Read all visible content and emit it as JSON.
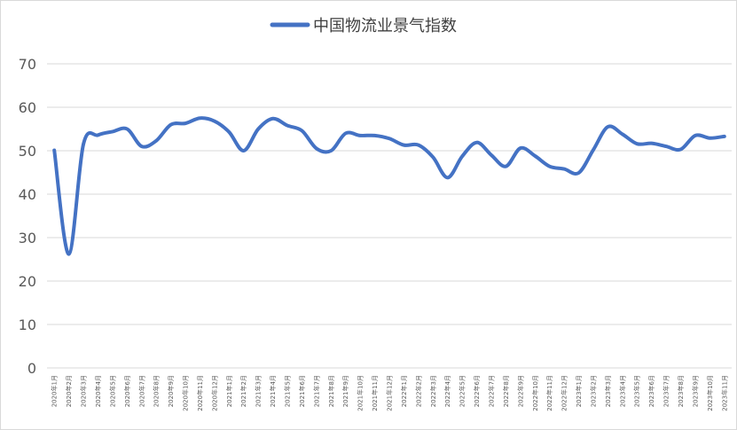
{
  "chart_data": {
    "type": "line",
    "series": [
      {
        "name": "中国物流业景气指数",
        "color": "#4472C4",
        "values": [
          50.1,
          26.2,
          51.5,
          53.6,
          54.4,
          55.0,
          51.0,
          52.3,
          56.0,
          56.3,
          57.5,
          56.8,
          54.3,
          50.0,
          55.0,
          57.4,
          55.8,
          54.6,
          50.5,
          50.0,
          54.0,
          53.5,
          53.5,
          52.8,
          51.3,
          51.3,
          48.5,
          43.8,
          48.7,
          51.9,
          49.0,
          46.4,
          50.6,
          48.8,
          46.4,
          45.8,
          44.9,
          50.2,
          55.5,
          53.8,
          51.6,
          51.7,
          51.0,
          50.3,
          53.5,
          52.9,
          53.3
        ]
      }
    ],
    "categories": [
      "2020年1月",
      "2020年2月",
      "2020年3月",
      "2020年4月",
      "2020年5月",
      "2020年6月",
      "2020年7月",
      "2020年8月",
      "2020年9月",
      "2020年10月",
      "2020年11月",
      "2020年12月",
      "2021年1月",
      "2021年2月",
      "2021年3月",
      "2021年4月",
      "2021年5月",
      "2021年6月",
      "2021年7月",
      "2021年8月",
      "2021年9月",
      "2021年10月",
      "2021年11月",
      "2021年12月",
      "2022年1月",
      "2022年2月",
      "2022年3月",
      "2022年4月",
      "2022年5月",
      "2022年6月",
      "2022年7月",
      "2022年8月",
      "2022年9月",
      "2022年10月",
      "2022年11月",
      "2022年12月",
      "2023年1月",
      "2023年2月",
      "2023年3月",
      "2023年4月",
      "2023年5月",
      "2023年6月",
      "2023年7月",
      "2023年8月",
      "2023年9月",
      "2023年10月",
      "2023年11月"
    ],
    "yticks": [
      "0",
      "10",
      "20",
      "30",
      "40",
      "50",
      "60",
      "70"
    ],
    "ylim": [
      0,
      70
    ],
    "grid": true,
    "legend": "top-center"
  }
}
